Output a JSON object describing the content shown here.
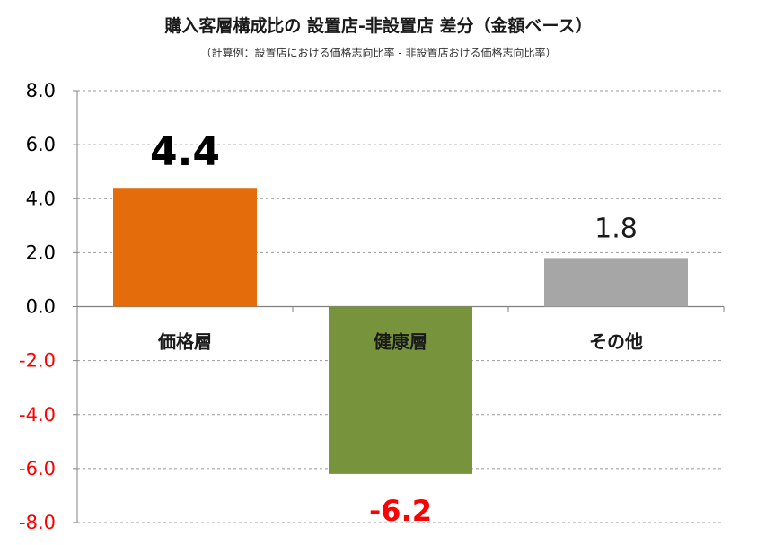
{
  "chart_data": {
    "type": "bar",
    "title": "購入客層構成比の 設置店-非設置店 差分（金額ベース）",
    "subtitle": "（計算例：設置店における価格志向比率 - 非設置店おける価格志向比率）",
    "categories": [
      "価格層",
      "健康層",
      "その他"
    ],
    "values": [
      4.4,
      -6.2,
      1.8
    ],
    "value_labels": [
      "4.4",
      "-6.2",
      "1.8"
    ],
    "ylim": [
      -8.0,
      8.0
    ],
    "yticks": [
      8.0,
      6.0,
      4.0,
      2.0,
      0.0,
      -2.0,
      -4.0,
      -6.0,
      -8.0
    ],
    "ytick_labels": [
      "8.0",
      "6.0",
      "4.0",
      "2.0",
      "0.0",
      "-2.0",
      "-4.0",
      "-6.0",
      "-8.0"
    ],
    "grid": true,
    "colors": {
      "bars": [
        "#E46C0A",
        "#77933C",
        "#A6A6A6"
      ],
      "positive_tick": "#000000",
      "negative_tick": "#FF0000",
      "grid": "#999999"
    }
  }
}
